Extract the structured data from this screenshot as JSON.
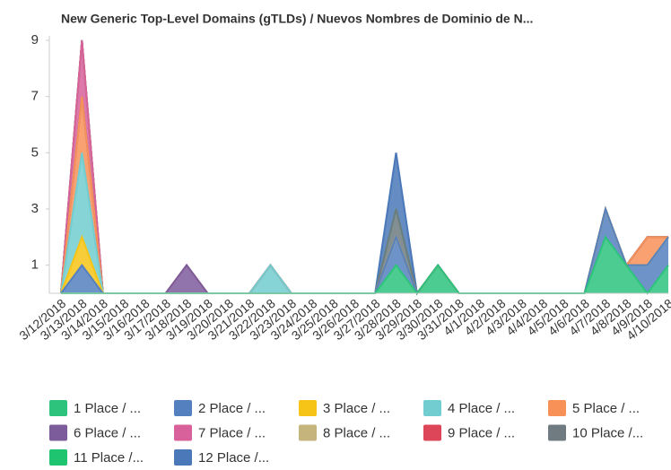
{
  "chart_data": {
    "type": "stacked_area",
    "title": "New Generic Top-Level Domains (gTLDs) /  Nuevos Nombres de Dominio de N...",
    "categories": [
      "3/12/2018",
      "3/13/2018",
      "3/14/2018",
      "3/15/2018",
      "3/16/2018",
      "3/17/2018",
      "3/18/2018",
      "3/19/2018",
      "3/20/2018",
      "3/21/2018",
      "3/22/2018",
      "3/23/2018",
      "3/24/2018",
      "3/25/2018",
      "3/26/2018",
      "3/27/2018",
      "3/28/2018",
      "3/29/2018",
      "3/30/2018",
      "3/31/2018",
      "4/1/2018",
      "4/2/2018",
      "4/3/2018",
      "4/4/2018",
      "4/5/2018",
      "4/6/2018",
      "4/7/2018",
      "4/8/2018",
      "4/9/2018",
      "4/10/2018"
    ],
    "series": [
      {
        "name": "1 Place / ...",
        "color": "#2dc37c",
        "values": [
          0,
          0,
          0,
          0,
          0,
          0,
          0,
          0,
          0,
          0,
          0,
          0,
          0,
          0,
          0,
          0,
          1,
          0,
          1,
          0,
          0,
          0,
          0,
          0,
          0,
          0,
          2,
          1,
          0,
          1
        ]
      },
      {
        "name": "2 Place / ...",
        "color": "#5580c0",
        "values": [
          0,
          1,
          0,
          0,
          0,
          0,
          0,
          0,
          0,
          0,
          0,
          0,
          0,
          0,
          0,
          0,
          1,
          0,
          0,
          0,
          0,
          0,
          0,
          0,
          0,
          0,
          1,
          0,
          1,
          1
        ]
      },
      {
        "name": "3 Place / ...",
        "color": "#f6c416",
        "values": [
          0,
          1,
          0,
          0,
          0,
          0,
          0,
          0,
          0,
          0,
          0,
          0,
          0,
          0,
          0,
          0,
          0,
          0,
          0,
          0,
          0,
          0,
          0,
          0,
          0,
          0,
          0,
          0,
          0,
          0
        ]
      },
      {
        "name": "4 Place / ...",
        "color": "#72cdd0",
        "values": [
          0,
          3,
          0,
          0,
          0,
          0,
          0,
          0,
          0,
          0,
          1,
          0,
          0,
          0,
          0,
          0,
          0,
          0,
          0,
          0,
          0,
          0,
          0,
          0,
          0,
          0,
          0,
          0,
          0,
          0
        ]
      },
      {
        "name": "5 Place / ...",
        "color": "#f89158",
        "values": [
          0,
          2,
          0,
          0,
          0,
          0,
          0,
          0,
          0,
          0,
          0,
          0,
          0,
          0,
          0,
          0,
          0,
          0,
          0,
          0,
          0,
          0,
          0,
          0,
          0,
          0,
          0,
          0,
          1,
          0
        ]
      },
      {
        "name": "6 Place / ...",
        "color": "#7d5c9c",
        "values": [
          0,
          0,
          0,
          0,
          0,
          0,
          1,
          0,
          0,
          0,
          0,
          0,
          0,
          0,
          0,
          0,
          0,
          0,
          0,
          0,
          0,
          0,
          0,
          0,
          0,
          0,
          0,
          0,
          0,
          0
        ]
      },
      {
        "name": "7 Place / ...",
        "color": "#d8609b",
        "values": [
          0,
          2,
          0,
          0,
          0,
          0,
          0,
          0,
          0,
          0,
          0,
          0,
          0,
          0,
          0,
          0,
          0,
          0,
          0,
          0,
          0,
          0,
          0,
          0,
          0,
          0,
          0,
          0,
          0,
          0
        ]
      },
      {
        "name": "8 Place / ...",
        "color": "#c5b47c",
        "values": [
          0,
          0,
          0,
          0,
          0,
          0,
          0,
          0,
          0,
          0,
          0,
          0,
          0,
          0,
          0,
          0,
          0,
          0,
          0,
          0,
          0,
          0,
          0,
          0,
          0,
          0,
          0,
          0,
          0,
          0
        ]
      },
      {
        "name": "9 Place / ...",
        "color": "#dc4658",
        "values": [
          0,
          0,
          0,
          0,
          0,
          0,
          0,
          0,
          0,
          0,
          0,
          0,
          0,
          0,
          0,
          0,
          0,
          0,
          0,
          0,
          0,
          0,
          0,
          0,
          0,
          0,
          0,
          0,
          0,
          0
        ]
      },
      {
        "name": "10 Place /...",
        "color": "#6f7b80",
        "values": [
          0,
          0,
          0,
          0,
          0,
          0,
          0,
          0,
          0,
          0,
          0,
          0,
          0,
          0,
          0,
          0,
          1,
          0,
          0,
          0,
          0,
          0,
          0,
          0,
          0,
          0,
          0,
          0,
          0,
          0
        ]
      },
      {
        "name": "11 Place /...",
        "color": "#1ec470",
        "values": [
          0,
          0,
          0,
          0,
          0,
          0,
          0,
          0,
          0,
          0,
          0,
          0,
          0,
          0,
          0,
          0,
          0,
          0,
          0,
          0,
          0,
          0,
          0,
          0,
          0,
          0,
          0,
          0,
          0,
          0
        ]
      },
      {
        "name": "12 Place /...",
        "color": "#4a78b8",
        "values": [
          0,
          0,
          0,
          0,
          0,
          0,
          0,
          0,
          0,
          0,
          0,
          0,
          0,
          0,
          0,
          0,
          2,
          0,
          0,
          0,
          0,
          0,
          0,
          0,
          0,
          0,
          0,
          0,
          0,
          0
        ]
      }
    ],
    "ylim": [
      0,
      9
    ],
    "yticks": [
      1,
      3,
      5,
      7,
      9
    ]
  }
}
